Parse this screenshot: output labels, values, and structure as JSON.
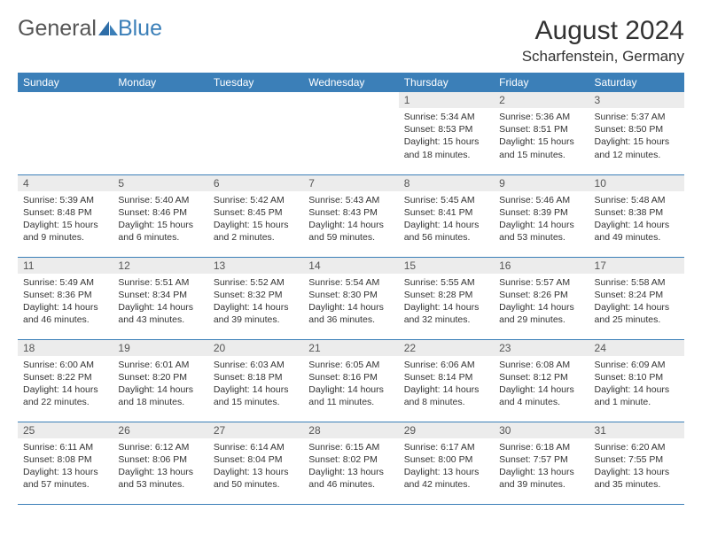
{
  "logo": {
    "general": "General",
    "blue": "Blue"
  },
  "title": "August 2024",
  "location": "Scharfenstein, Germany",
  "colors": {
    "header_bg": "#3b7fb8",
    "header_text": "#ffffff",
    "daynum_bg": "#ececec",
    "border": "#3b7fb8",
    "logo_blue": "#3b7fb8",
    "text": "#333333"
  },
  "day_names": [
    "Sunday",
    "Monday",
    "Tuesday",
    "Wednesday",
    "Thursday",
    "Friday",
    "Saturday"
  ],
  "weeks": [
    [
      {
        "n": "",
        "sr": "",
        "ss": "",
        "dl": ""
      },
      {
        "n": "",
        "sr": "",
        "ss": "",
        "dl": ""
      },
      {
        "n": "",
        "sr": "",
        "ss": "",
        "dl": ""
      },
      {
        "n": "",
        "sr": "",
        "ss": "",
        "dl": ""
      },
      {
        "n": "1",
        "sr": "Sunrise: 5:34 AM",
        "ss": "Sunset: 8:53 PM",
        "dl": "Daylight: 15 hours and 18 minutes."
      },
      {
        "n": "2",
        "sr": "Sunrise: 5:36 AM",
        "ss": "Sunset: 8:51 PM",
        "dl": "Daylight: 15 hours and 15 minutes."
      },
      {
        "n": "3",
        "sr": "Sunrise: 5:37 AM",
        "ss": "Sunset: 8:50 PM",
        "dl": "Daylight: 15 hours and 12 minutes."
      }
    ],
    [
      {
        "n": "4",
        "sr": "Sunrise: 5:39 AM",
        "ss": "Sunset: 8:48 PM",
        "dl": "Daylight: 15 hours and 9 minutes."
      },
      {
        "n": "5",
        "sr": "Sunrise: 5:40 AM",
        "ss": "Sunset: 8:46 PM",
        "dl": "Daylight: 15 hours and 6 minutes."
      },
      {
        "n": "6",
        "sr": "Sunrise: 5:42 AM",
        "ss": "Sunset: 8:45 PM",
        "dl": "Daylight: 15 hours and 2 minutes."
      },
      {
        "n": "7",
        "sr": "Sunrise: 5:43 AM",
        "ss": "Sunset: 8:43 PM",
        "dl": "Daylight: 14 hours and 59 minutes."
      },
      {
        "n": "8",
        "sr": "Sunrise: 5:45 AM",
        "ss": "Sunset: 8:41 PM",
        "dl": "Daylight: 14 hours and 56 minutes."
      },
      {
        "n": "9",
        "sr": "Sunrise: 5:46 AM",
        "ss": "Sunset: 8:39 PM",
        "dl": "Daylight: 14 hours and 53 minutes."
      },
      {
        "n": "10",
        "sr": "Sunrise: 5:48 AM",
        "ss": "Sunset: 8:38 PM",
        "dl": "Daylight: 14 hours and 49 minutes."
      }
    ],
    [
      {
        "n": "11",
        "sr": "Sunrise: 5:49 AM",
        "ss": "Sunset: 8:36 PM",
        "dl": "Daylight: 14 hours and 46 minutes."
      },
      {
        "n": "12",
        "sr": "Sunrise: 5:51 AM",
        "ss": "Sunset: 8:34 PM",
        "dl": "Daylight: 14 hours and 43 minutes."
      },
      {
        "n": "13",
        "sr": "Sunrise: 5:52 AM",
        "ss": "Sunset: 8:32 PM",
        "dl": "Daylight: 14 hours and 39 minutes."
      },
      {
        "n": "14",
        "sr": "Sunrise: 5:54 AM",
        "ss": "Sunset: 8:30 PM",
        "dl": "Daylight: 14 hours and 36 minutes."
      },
      {
        "n": "15",
        "sr": "Sunrise: 5:55 AM",
        "ss": "Sunset: 8:28 PM",
        "dl": "Daylight: 14 hours and 32 minutes."
      },
      {
        "n": "16",
        "sr": "Sunrise: 5:57 AM",
        "ss": "Sunset: 8:26 PM",
        "dl": "Daylight: 14 hours and 29 minutes."
      },
      {
        "n": "17",
        "sr": "Sunrise: 5:58 AM",
        "ss": "Sunset: 8:24 PM",
        "dl": "Daylight: 14 hours and 25 minutes."
      }
    ],
    [
      {
        "n": "18",
        "sr": "Sunrise: 6:00 AM",
        "ss": "Sunset: 8:22 PM",
        "dl": "Daylight: 14 hours and 22 minutes."
      },
      {
        "n": "19",
        "sr": "Sunrise: 6:01 AM",
        "ss": "Sunset: 8:20 PM",
        "dl": "Daylight: 14 hours and 18 minutes."
      },
      {
        "n": "20",
        "sr": "Sunrise: 6:03 AM",
        "ss": "Sunset: 8:18 PM",
        "dl": "Daylight: 14 hours and 15 minutes."
      },
      {
        "n": "21",
        "sr": "Sunrise: 6:05 AM",
        "ss": "Sunset: 8:16 PM",
        "dl": "Daylight: 14 hours and 11 minutes."
      },
      {
        "n": "22",
        "sr": "Sunrise: 6:06 AM",
        "ss": "Sunset: 8:14 PM",
        "dl": "Daylight: 14 hours and 8 minutes."
      },
      {
        "n": "23",
        "sr": "Sunrise: 6:08 AM",
        "ss": "Sunset: 8:12 PM",
        "dl": "Daylight: 14 hours and 4 minutes."
      },
      {
        "n": "24",
        "sr": "Sunrise: 6:09 AM",
        "ss": "Sunset: 8:10 PM",
        "dl": "Daylight: 14 hours and 1 minute."
      }
    ],
    [
      {
        "n": "25",
        "sr": "Sunrise: 6:11 AM",
        "ss": "Sunset: 8:08 PM",
        "dl": "Daylight: 13 hours and 57 minutes."
      },
      {
        "n": "26",
        "sr": "Sunrise: 6:12 AM",
        "ss": "Sunset: 8:06 PM",
        "dl": "Daylight: 13 hours and 53 minutes."
      },
      {
        "n": "27",
        "sr": "Sunrise: 6:14 AM",
        "ss": "Sunset: 8:04 PM",
        "dl": "Daylight: 13 hours and 50 minutes."
      },
      {
        "n": "28",
        "sr": "Sunrise: 6:15 AM",
        "ss": "Sunset: 8:02 PM",
        "dl": "Daylight: 13 hours and 46 minutes."
      },
      {
        "n": "29",
        "sr": "Sunrise: 6:17 AM",
        "ss": "Sunset: 8:00 PM",
        "dl": "Daylight: 13 hours and 42 minutes."
      },
      {
        "n": "30",
        "sr": "Sunrise: 6:18 AM",
        "ss": "Sunset: 7:57 PM",
        "dl": "Daylight: 13 hours and 39 minutes."
      },
      {
        "n": "31",
        "sr": "Sunrise: 6:20 AM",
        "ss": "Sunset: 7:55 PM",
        "dl": "Daylight: 13 hours and 35 minutes."
      }
    ]
  ]
}
